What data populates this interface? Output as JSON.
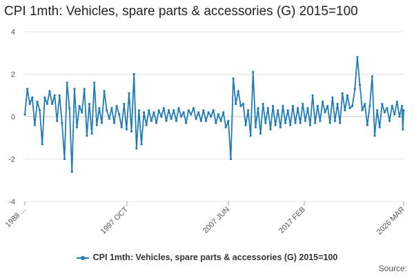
{
  "chart_data": {
    "type": "line",
    "title": "CPI 1mth: Vehicles, spare parts & accessories (G) 2015=100",
    "xlabel": "",
    "ylabel": "",
    "ylim": [
      -4,
      4
    ],
    "yticks": [
      -4,
      -2,
      0,
      2,
      4
    ],
    "xlim": [
      "1988 JAN",
      "2026 MAR"
    ],
    "xtick_labels": [
      "1988 ...",
      "1997 OCT",
      "2007 JUN",
      "2017 FEB",
      "2026 MAR"
    ],
    "grid": "horizontal",
    "legend": "bottom",
    "series": [
      {
        "name": "CPI 1mth: Vehicles, spare parts & accessories (G) 2015=100",
        "color": "#1f7bb5",
        "values": [
          [
            "1988 JAN",
            0.1
          ],
          [
            "1988 APR",
            1.3
          ],
          [
            "1988 JUL",
            0.6
          ],
          [
            "1988 OCT",
            0.9
          ],
          [
            "1989 JAN",
            -0.4
          ],
          [
            "1989 APR",
            0.7
          ],
          [
            "1989 JUL",
            0.3
          ],
          [
            "1989 OCT",
            -1.3
          ],
          [
            "1990 JAN",
            0.9
          ],
          [
            "1990 APR",
            0.6
          ],
          [
            "1990 JUL",
            1.2
          ],
          [
            "1990 OCT",
            0.6
          ],
          [
            "1991 JAN",
            1.0
          ],
          [
            "1991 APR",
            -0.2
          ],
          [
            "1991 JUL",
            1.0
          ],
          [
            "1991 OCT",
            -0.3
          ],
          [
            "1992 JAN",
            -2.0
          ],
          [
            "1992 APR",
            1.6
          ],
          [
            "1992 JUL",
            0.4
          ],
          [
            "1992 OCT",
            -2.6
          ],
          [
            "1993 JAN",
            1.3
          ],
          [
            "1993 APR",
            -0.5
          ],
          [
            "1993 JUL",
            0.5
          ],
          [
            "1993 OCT",
            0.2
          ],
          [
            "1994 JAN",
            1.3
          ],
          [
            "1994 APR",
            -0.9
          ],
          [
            "1994 JUL",
            0.6
          ],
          [
            "1994 OCT",
            -0.8
          ],
          [
            "1995 JAN",
            1.6
          ],
          [
            "1995 APR",
            -0.4
          ],
          [
            "1995 JUL",
            0.4
          ],
          [
            "1995 OCT",
            -0.3
          ],
          [
            "1996 JAN",
            1.2
          ],
          [
            "1996 APR",
            0.3
          ],
          [
            "1996 JUL",
            -0.1
          ],
          [
            "1996 OCT",
            0.4
          ],
          [
            "1997 JAN",
            -0.3
          ],
          [
            "1997 APR",
            0.5
          ],
          [
            "1997 JUL",
            0.1
          ],
          [
            "1997 OCT",
            -0.5
          ],
          [
            "1998 JAN",
            0.6
          ],
          [
            "1998 APR",
            -0.6
          ],
          [
            "1998 JUL",
            1.1
          ],
          [
            "1998 OCT",
            -0.7
          ],
          [
            "1999 JAN",
            2.0
          ],
          [
            "1999 APR",
            -1.5
          ],
          [
            "1999 JUL",
            0.3
          ],
          [
            "1999 OCT",
            -1.3
          ],
          [
            "2000 JAN",
            0.2
          ],
          [
            "2000 APR",
            -0.4
          ],
          [
            "2000 JUL",
            0.3
          ],
          [
            "2000 OCT",
            -0.2
          ],
          [
            "2001 JAN",
            0.2
          ],
          [
            "2001 APR",
            -0.3
          ],
          [
            "2001 JUL",
            0.3
          ],
          [
            "2001 OCT",
            0.0
          ],
          [
            "2002 JAN",
            0.4
          ],
          [
            "2002 APR",
            -0.2
          ],
          [
            "2002 JUL",
            0.3
          ],
          [
            "2002 OCT",
            -0.1
          ],
          [
            "2003 JAN",
            0.3
          ],
          [
            "2003 APR",
            -0.2
          ],
          [
            "2003 JUL",
            0.4
          ],
          [
            "2003 OCT",
            0.0
          ],
          [
            "2004 JAN",
            0.2
          ],
          [
            "2004 APR",
            -0.3
          ],
          [
            "2004 JUL",
            0.3
          ],
          [
            "2004 OCT",
            0.1
          ],
          [
            "2005 JAN",
            0.4
          ],
          [
            "2005 APR",
            -0.1
          ],
          [
            "2005 JUL",
            0.2
          ],
          [
            "2005 OCT",
            -0.2
          ],
          [
            "2006 JAN",
            0.3
          ],
          [
            "2006 APR",
            -0.2
          ],
          [
            "2006 JUL",
            0.2
          ],
          [
            "2006 OCT",
            0.0
          ],
          [
            "2007 JAN",
            0.3
          ],
          [
            "2007 APR",
            -0.3
          ],
          [
            "2007 JUL",
            0.1
          ],
          [
            "2007 OCT",
            -0.2
          ],
          [
            "2008 JAN",
            0.2
          ],
          [
            "2008 APR",
            -0.5
          ],
          [
            "2008 JUL",
            -0.2
          ],
          [
            "2008 OCT",
            -2.0
          ],
          [
            "2009 JAN",
            1.8
          ],
          [
            "2009 APR",
            0.6
          ],
          [
            "2009 JUL",
            1.2
          ],
          [
            "2009 OCT",
            0.5
          ],
          [
            "2010 JAN",
            0.6
          ],
          [
            "2010 APR",
            -0.4
          ],
          [
            "2010 JUL",
            0.3
          ],
          [
            "2010 OCT",
            -0.9
          ],
          [
            "2011 JAN",
            2.1
          ],
          [
            "2011 APR",
            -0.5
          ],
          [
            "2011 JUL",
            0.4
          ],
          [
            "2011 OCT",
            -0.8
          ],
          [
            "2012 JAN",
            0.6
          ],
          [
            "2012 APR",
            -0.3
          ],
          [
            "2012 JUL",
            0.4
          ],
          [
            "2012 OCT",
            -0.6
          ],
          [
            "2013 JAN",
            0.5
          ],
          [
            "2013 APR",
            -0.4
          ],
          [
            "2013 JUL",
            0.3
          ],
          [
            "2013 OCT",
            -0.5
          ],
          [
            "2014 JAN",
            0.5
          ],
          [
            "2014 APR",
            -0.3
          ],
          [
            "2014 JUL",
            0.3
          ],
          [
            "2014 OCT",
            -0.4
          ],
          [
            "2015 JAN",
            0.5
          ],
          [
            "2015 APR",
            -0.3
          ],
          [
            "2015 JUL",
            0.4
          ],
          [
            "2015 OCT",
            -0.3
          ],
          [
            "2016 JAN",
            0.6
          ],
          [
            "2016 APR",
            -0.2
          ],
          [
            "2016 JUL",
            0.4
          ],
          [
            "2016 OCT",
            -0.4
          ],
          [
            "2017 JAN",
            1.0
          ],
          [
            "2017 APR",
            -0.3
          ],
          [
            "2017 JUL",
            0.5
          ],
          [
            "2017 OCT",
            -0.2
          ],
          [
            "2018 JAN",
            0.7
          ],
          [
            "2018 APR",
            0.2
          ],
          [
            "2018 JUL",
            0.5
          ],
          [
            "2018 OCT",
            -0.3
          ],
          [
            "2019 JAN",
            0.9
          ],
          [
            "2019 APR",
            -0.2
          ],
          [
            "2019 JUL",
            0.6
          ],
          [
            "2019 OCT",
            -0.3
          ],
          [
            "2020 JAN",
            1.1
          ],
          [
            "2020 APR",
            0.3
          ],
          [
            "2020 JUL",
            1.0
          ],
          [
            "2020 OCT",
            0.4
          ],
          [
            "2021 JAN",
            0.5
          ],
          [
            "2021 APR",
            1.3
          ],
          [
            "2021 JUL",
            2.8
          ],
          [
            "2021 OCT",
            1.5
          ],
          [
            "2022 JAN",
            0.3
          ],
          [
            "2022 APR",
            0.6
          ],
          [
            "2022 JUL",
            -0.4
          ],
          [
            "2022 OCT",
            0.5
          ],
          [
            "2023 JAN",
            1.9
          ],
          [
            "2023 APR",
            -0.9
          ],
          [
            "2023 JUL",
            0.3
          ],
          [
            "2023 OCT",
            -0.5
          ],
          [
            "2024 JAN",
            0.6
          ],
          [
            "2024 APR",
            0.2
          ],
          [
            "2024 JUL",
            0.4
          ],
          [
            "2024 OCT",
            -0.2
          ],
          [
            "2025 JAN",
            0.5
          ],
          [
            "2025 APR",
            0.1
          ],
          [
            "2025 JUL",
            0.7
          ],
          [
            "2025 OCT",
            0.0
          ],
          [
            "2026 JAN",
            0.5
          ],
          [
            "2026 FEB",
            -0.6
          ],
          [
            "2026 MAR",
            0.3
          ]
        ]
      }
    ]
  },
  "footer": {
    "source_label": "Source:"
  }
}
